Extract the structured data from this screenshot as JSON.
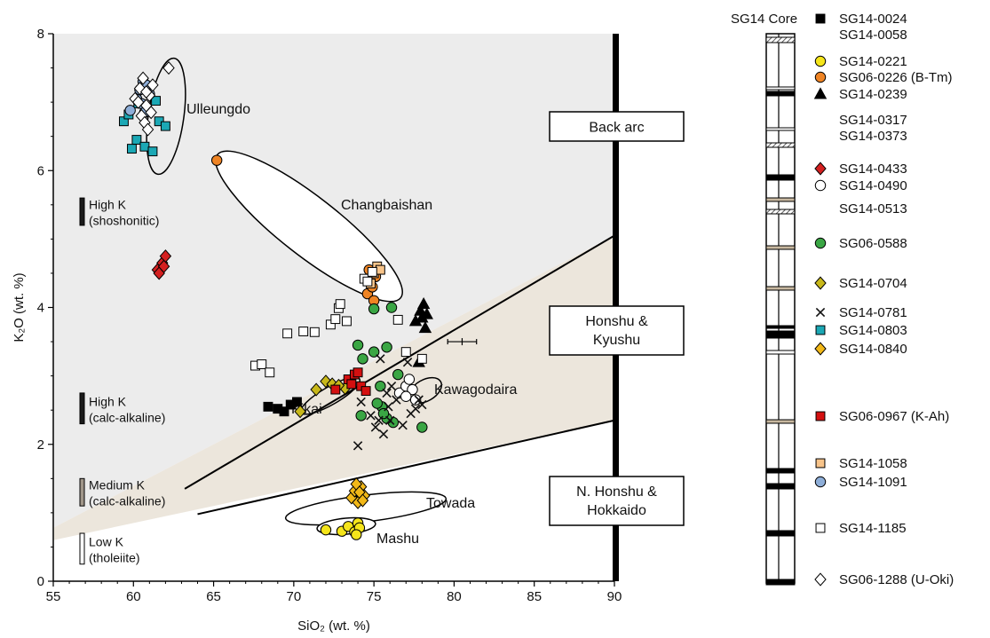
{
  "chart_data": {
    "type": "scatter",
    "xlabel": "SiO₂ (wt. %)",
    "ylabel": "K₂O (wt. %)",
    "xlim": [
      55,
      90
    ],
    "ylim": [
      0,
      8
    ],
    "xticks": [
      55,
      60,
      65,
      70,
      75,
      80,
      85,
      90
    ],
    "yticks": [
      0,
      2,
      4,
      6,
      8
    ],
    "grid": false,
    "regions": [
      {
        "label": "Back arc",
        "color": "#ececec"
      },
      {
        "label": "Honshu & Kyushu",
        "color": "#ece6dc"
      },
      {
        "label": "N. Honshu & Hokkaido",
        "color": "#ffffff"
      }
    ],
    "potassium_series": [
      {
        "label": "High K (shoshonitic)",
        "range": [
          5.2,
          5.6
        ]
      },
      {
        "label": "High K (calc-alkaline)",
        "range": [
          2.3,
          2.75
        ]
      },
      {
        "label": "Medium K (calc-alkaline)",
        "range": [
          1.1,
          1.5
        ]
      },
      {
        "label": "Low K (tholeiite)",
        "range": [
          0.25,
          0.7
        ]
      }
    ],
    "field_labels": [
      "Ulleungdo",
      "Changbaishan",
      "Kawagodaira",
      "Kikai",
      "Towada",
      "Mashu"
    ],
    "series": [
      {
        "name": "SG14-0024",
        "marker": "square",
        "color": "#000000",
        "x": [
          68.4,
          69.0,
          69.4,
          69.8,
          70.2
        ],
        "y": [
          2.55,
          2.52,
          2.48,
          2.58,
          2.62
        ]
      },
      {
        "name": "SG14-0221",
        "marker": "circle",
        "color": "#f5e51a",
        "x": [
          72.0,
          73.0,
          73.4,
          73.8,
          74.0,
          74.1,
          73.9
        ],
        "y": [
          0.75,
          0.73,
          0.8,
          0.72,
          0.85,
          0.78,
          0.68
        ]
      },
      {
        "name": "SG06-0226 (B-Tm)",
        "marker": "circle",
        "color": "#ef8424",
        "x": [
          65.2,
          74.6,
          74.9,
          75.1,
          74.7,
          75.0
        ],
        "y": [
          6.15,
          4.2,
          4.3,
          4.45,
          4.55,
          4.1
        ]
      },
      {
        "name": "SG14-0239",
        "marker": "triangle",
        "color": "#000000",
        "x": [
          77.6,
          77.9,
          78.1,
          78.2,
          78.0,
          77.8,
          78.3
        ],
        "y": [
          3.8,
          3.95,
          4.05,
          3.7,
          3.85,
          3.2,
          3.9
        ]
      },
      {
        "name": "SG14-0433",
        "marker": "diamond",
        "color": "#d42020",
        "x": [
          61.5,
          61.8,
          62.0,
          61.6,
          61.9
        ],
        "y": [
          4.55,
          4.65,
          4.75,
          4.5,
          4.6
        ]
      },
      {
        "name": "SG14-0490",
        "marker": "circle",
        "color": "#ffffff",
        "x": [
          76.6,
          77.0,
          77.2,
          77.4,
          77.6,
          77.0
        ],
        "y": [
          2.75,
          2.85,
          2.95,
          2.8,
          2.65,
          2.7
        ]
      },
      {
        "name": "SG06-0588",
        "marker": "circle",
        "color": "#3aa644",
        "x": [
          74.0,
          74.3,
          75.0,
          75.4,
          75.8,
          76.1,
          75.0,
          76.5,
          75.5,
          74.2,
          76.2,
          78.0,
          75.8,
          75.6,
          75.2
        ],
        "y": [
          3.45,
          3.25,
          3.35,
          2.85,
          3.42,
          4.0,
          3.98,
          3.02,
          2.55,
          2.42,
          2.32,
          2.25,
          2.38,
          2.45,
          2.6
        ]
      },
      {
        "name": "SG14-0704",
        "marker": "diamond",
        "color": "#c8b81a",
        "x": [
          70.4,
          71.4,
          72.0,
          72.4,
          73.2,
          72.8
        ],
        "y": [
          2.48,
          2.8,
          2.92,
          2.88,
          2.82,
          2.86
        ]
      },
      {
        "name": "SG14-0781",
        "marker": "x",
        "color": "#111111",
        "x": [
          74.0,
          75.3,
          75.6,
          75.9,
          76.4,
          76.8,
          77.3,
          77.8,
          75.1,
          74.8,
          76.1,
          77.6,
          78.0,
          75.4,
          76.0,
          77.1,
          74.2,
          75.8
        ],
        "y": [
          1.98,
          2.35,
          2.15,
          2.55,
          2.65,
          2.28,
          2.45,
          2.65,
          2.25,
          2.42,
          2.85,
          2.52,
          2.58,
          3.25,
          2.35,
          3.2,
          2.62,
          2.75
        ]
      },
      {
        "name": "SG14-0803",
        "marker": "square",
        "color": "#1ba8b5",
        "x": [
          59.4,
          59.9,
          60.2,
          60.7,
          61.2,
          61.6,
          62.0,
          60.3,
          59.7,
          61.4
        ],
        "y": [
          6.72,
          6.32,
          6.45,
          6.35,
          6.28,
          6.72,
          6.65,
          6.98,
          6.82,
          7.02
        ]
      },
      {
        "name": "SG14-0840",
        "marker": "diamond",
        "color": "#f2b818",
        "x": [
          73.6,
          73.8,
          74.0,
          74.2,
          74.4,
          73.9,
          74.1,
          74.3
        ],
        "y": [
          1.22,
          1.32,
          1.15,
          1.38,
          1.25,
          1.42,
          1.3,
          1.18
        ]
      },
      {
        "name": "SG06-0967 (K-Ah)",
        "marker": "square",
        "color": "#d41010",
        "x": [
          72.6,
          73.4,
          73.8,
          74.2,
          74.5,
          73.6,
          74.0
        ],
        "y": [
          2.8,
          2.95,
          3.02,
          2.85,
          2.78,
          2.88,
          3.05
        ]
      },
      {
        "name": "SG14-1058",
        "marker": "square",
        "color": "#f8c48a",
        "x": [
          74.6,
          75.0,
          75.2,
          74.8,
          75.4
        ],
        "y": [
          4.4,
          4.5,
          4.6,
          4.35,
          4.55
        ]
      },
      {
        "name": "SG14-1091",
        "marker": "circle",
        "color": "#8eaed8",
        "x": [
          59.8,
          60.2,
          60.4,
          60.6,
          60.8,
          61.0,
          60.5,
          60.7
        ],
        "y": [
          6.88,
          7.05,
          7.18,
          7.3,
          7.25,
          7.12,
          6.98,
          6.85
        ]
      },
      {
        "name": "SG14-1185",
        "marker": "square",
        "color": "#ffffff",
        "x": [
          67.6,
          68.0,
          68.5,
          69.6,
          70.6,
          71.3,
          72.3,
          72.6,
          72.8,
          72.9,
          73.3,
          74.4,
          74.6,
          74.9,
          76.5,
          78.0,
          77.0
        ],
        "y": [
          3.15,
          3.17,
          3.05,
          3.62,
          3.65,
          3.64,
          3.75,
          3.83,
          3.99,
          4.05,
          3.8,
          4.42,
          4.38,
          4.52,
          3.82,
          3.25,
          3.35
        ]
      },
      {
        "name": "SG06-1288 (U-Oki)",
        "marker": "diamond",
        "color": "#ffffff",
        "x": [
          60.1,
          60.4,
          60.6,
          60.8,
          61.0,
          61.2,
          60.5,
          60.7,
          60.9,
          61.1,
          60.3,
          60.8,
          62.2
        ],
        "y": [
          7.05,
          7.2,
          7.35,
          6.95,
          7.1,
          7.25,
          6.8,
          6.7,
          6.6,
          6.85,
          7.0,
          7.15,
          7.5
        ]
      }
    ],
    "error_point": {
      "x": 80.5,
      "y": 3.5,
      "xerr": 0.9
    },
    "core": {
      "title": "SG14 Core",
      "samples": [
        "SG14-0024",
        "SG14-0058",
        "SG14-0221",
        "SG06-0226 (B-Tm)",
        "SG14-0239",
        "SG14-0317",
        "SG14-0373",
        "SG14-0433",
        "SG14-0490",
        "SG14-0513",
        "SG06-0588",
        "SG14-0704",
        "SG14-0781",
        "SG14-0803",
        "SG14-0840",
        "SG06-0967 (K-Ah)",
        "SG14-1058",
        "SG14-1091",
        "SG14-1185",
        "SG06-1288 (U-Oki)"
      ]
    }
  }
}
